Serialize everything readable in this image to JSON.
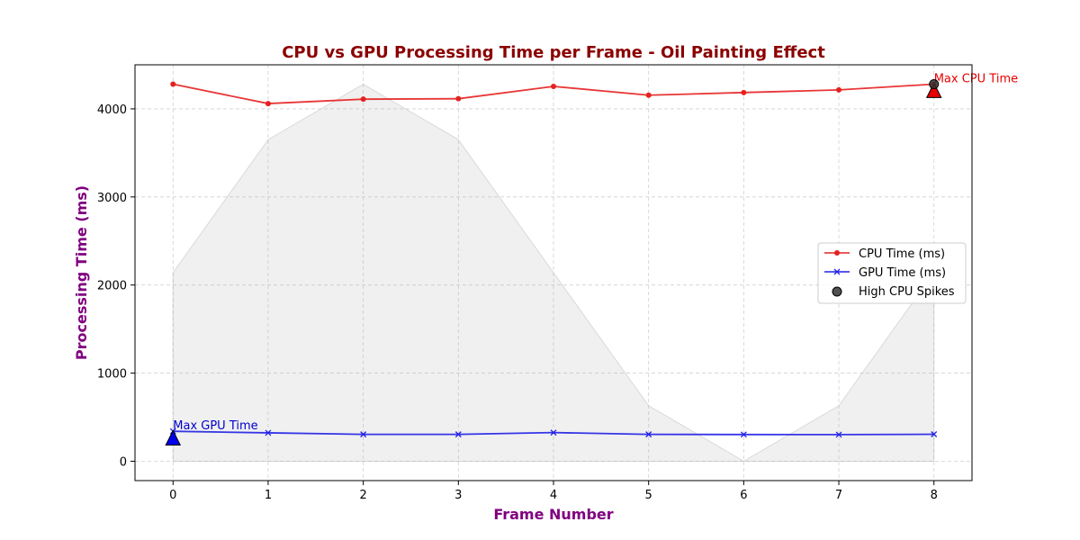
{
  "chart_data": {
    "type": "line",
    "title": "CPU vs GPU Processing Time per Frame - Oil Painting Effect",
    "xlabel": "Frame Number",
    "ylabel": "Processing Time (ms)",
    "x": [
      0,
      1,
      2,
      3,
      4,
      5,
      6,
      7,
      8
    ],
    "xlim": [
      -0.4,
      8.4
    ],
    "ylim": [
      -220,
      4500
    ],
    "xticks": [
      0,
      1,
      2,
      3,
      4,
      5,
      6,
      7,
      8
    ],
    "yticks": [
      0,
      1000,
      2000,
      3000,
      4000
    ],
    "grid": true,
    "legend_position": "center-right",
    "series": [
      {
        "name": "CPU Time (ms)",
        "color": "#e62020",
        "marker": "circle",
        "values": [
          4280,
          4060,
          4110,
          4115,
          4255,
          4155,
          4185,
          4215,
          4280
        ]
      },
      {
        "name": "GPU Time (ms)",
        "color": "#2020e6",
        "marker": "x",
        "values": [
          340,
          322,
          305,
          305,
          325,
          305,
          303,
          302,
          306
        ]
      }
    ],
    "background_band": {
      "color": "#d9d9d9",
      "values": [
        2140,
        3650,
        4280,
        3650,
        2140,
        630,
        0,
        630,
        2140
      ]
    },
    "spikes": {
      "name": "High CPU Spikes",
      "color": "#333333",
      "points": [
        {
          "x": 8,
          "y": 4280
        }
      ]
    },
    "annotations": [
      {
        "text": "Max CPU Time",
        "x": 8,
        "y": 4280,
        "marker_y": 4200,
        "color": "#e60000",
        "marker_color": "#e60000"
      },
      {
        "text": "Max GPU Time",
        "x": 0,
        "y": 340,
        "marker_y": 255,
        "color": "#0000cc",
        "marker_color": "#0000ee"
      }
    ],
    "title_color": "#8b0000",
    "axis_label_color": "#800080"
  }
}
